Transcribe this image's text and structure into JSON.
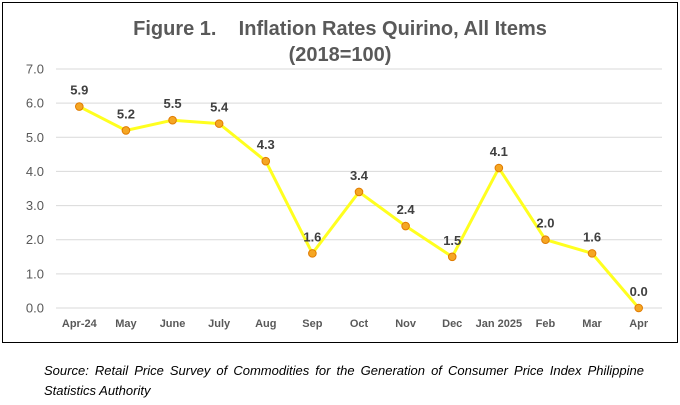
{
  "chart_data": {
    "type": "line",
    "title": "Figure 1.    Inflation Rates Quirino, All Items",
    "subtitle": "(2018=100)",
    "categories": [
      "Apr-24",
      "May",
      "June",
      "July",
      "Aug",
      "Sep",
      "Oct",
      "Nov",
      "Dec",
      "Jan 2025",
      "Feb",
      "Mar",
      "Apr"
    ],
    "series": [
      {
        "values": [
          5.9,
          5.2,
          5.5,
          5.4,
          4.3,
          1.6,
          3.4,
          2.4,
          1.5,
          4.1,
          2.0,
          1.6,
          0.0
        ]
      }
    ],
    "value_labels": [
      "5.9",
      "5.2",
      "5.5",
      "5.4",
      "4.3",
      "1.6",
      "3.4",
      "2.4",
      "1.5",
      "4.1",
      "2.0",
      "1.6",
      "0.0"
    ],
    "ylim": [
      0,
      7
    ],
    "yticks": [
      "0.0",
      "1.0",
      "2.0",
      "3.0",
      "4.0",
      "5.0",
      "6.0",
      "7.0"
    ],
    "grid": true,
    "colors": {
      "line": "#FFFF1F",
      "marker": "#F5A623",
      "marker_edge": "#E07B00",
      "grid": "#D9D9D9"
    }
  },
  "source": "Source:   Retail Price Survey of Commodities for the Generation of Consumer Price Index Philippine Statistics Authority"
}
